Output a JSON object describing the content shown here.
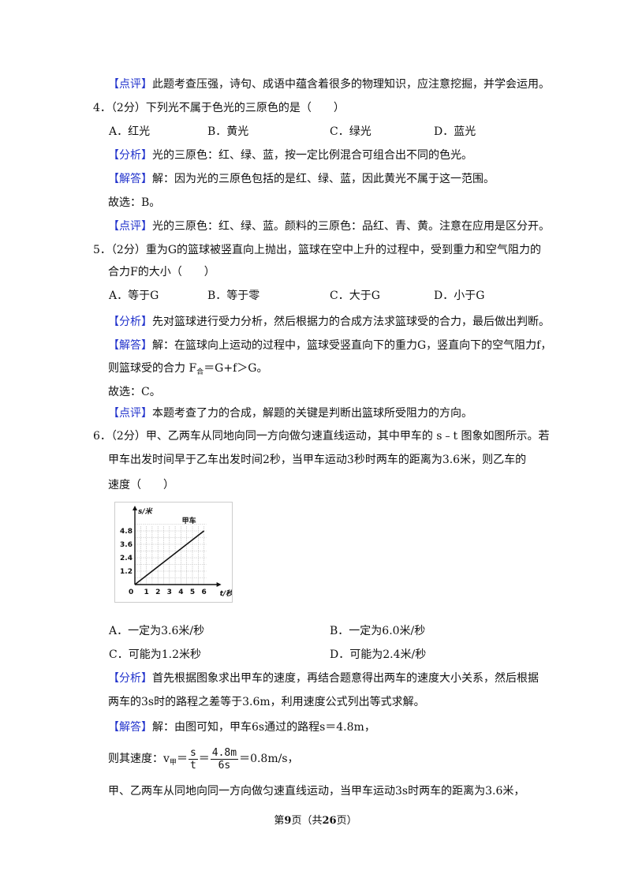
{
  "prev_review": {
    "tag": "【点评】",
    "text": "此题考查压强，诗句、成语中蕴含着很多的物理知识，应注意挖掘，并学会运用。"
  },
  "questions": [
    {
      "number": "4．",
      "score": "（2分）",
      "stem": [
        "下列光不属于色光的三原色的是（　　）"
      ],
      "options": [
        {
          "letter": "A．",
          "text": "红光"
        },
        {
          "letter": "B．",
          "text": "黄光"
        },
        {
          "letter": "C．",
          "text": "绿光"
        },
        {
          "letter": "D．",
          "text": "蓝光"
        }
      ],
      "analysis": {
        "tag": "【分析】",
        "text": [
          "光的三原色：红、绿、蓝，按一定比例混合可组合出不同的色光。"
        ]
      },
      "answer": {
        "tag": "【解答】",
        "text": [
          "解：因为光的三原色包括的是红、绿、蓝，因此黄光不属于这一范围。"
        ]
      },
      "choice": "故选：B。",
      "review": {
        "tag": "【点评】",
        "text": "光的三原色：红、绿、蓝。颜料的三原色：品红、青、黄。注意在应用是区分开。"
      }
    },
    {
      "number": "5．",
      "score": "（2分）",
      "stem": [
        "重为G的篮球被竖直向上抛出，篮球在空中上升的过程中，受到重力和空气阻力的",
        "合力F的大小（　　）"
      ],
      "options": [
        {
          "letter": "A．",
          "text": "等于G"
        },
        {
          "letter": "B．",
          "text": "等于零"
        },
        {
          "letter": "C．",
          "text": "大于G"
        },
        {
          "letter": "D．",
          "text": "小于G"
        }
      ],
      "analysis": {
        "tag": "【分析】",
        "text": [
          "先对篮球进行受力分析，然后根据力的合成方法求篮球受的合力，最后做出判断。"
        ]
      },
      "answer": {
        "tag": "【解答】",
        "text": [
          "解：在篮球向上运动的过程中，篮球受竖直向下的重力G，竖直向下的空气阻力f，"
        ],
        "formula": {
          "pre": "则篮球受的合力 F",
          "sub": "合",
          "post": "＝G+f＞G。"
        }
      },
      "choice": "故选：C。",
      "review": {
        "tag": "【点评】",
        "text": "本题考查了力的合成，解题的关键是判断出篮球所受阻力的方向。"
      }
    },
    {
      "number": "6．",
      "score": "（2分）",
      "stem": [
        "甲、乙两车从同地向同一方向做匀速直线运动，其中甲车的 s﹣t 图象如图所示。若",
        "甲车出发时间早于乙车出发时间2秒，当甲车运动3秒时两车的距离为3.6米，则乙车的",
        "速度（　　）"
      ],
      "figure": {
        "y_label": "s/米",
        "x_label": "t/秒",
        "line_label": "甲车",
        "origin": "0",
        "yticks": [
          "1.2",
          "2.4",
          "3.6",
          "4.8"
        ],
        "xticks": [
          "1",
          "2",
          "3",
          "4",
          "5",
          "6"
        ]
      },
      "options": [
        {
          "letter": "A．",
          "text": "一定为3.6米/秒"
        },
        {
          "letter": "B．",
          "text": "一定为6.0米/秒"
        },
        {
          "letter": "C．",
          "text": "可能为1.2米秒"
        },
        {
          "letter": "D．",
          "text": "可能为2.4米/秒"
        }
      ],
      "analysis": {
        "tag": "【分析】",
        "text": [
          "首先根据图象求出甲车的速度，再结合题意得出两车的速度大小关系，然后根据",
          "两车的3s时的路程之差等于3.6m，利用速度公式列出等式求解。"
        ]
      },
      "answer": {
        "tag": "【解答】",
        "text": [
          "解：由图可知，甲车6s通过的路程s＝4.8m，"
        ],
        "formula": {
          "pre": "则其速度：v",
          "sub": "甲",
          "eq1": "＝",
          "num1": "s",
          "den1": "t",
          "eq2": "＝",
          "num2": "4.8m",
          "den2": "6s",
          "result": "＝0.8m/s，"
        },
        "more": "甲、乙两车从同地向同一方向做匀速直线运动，当甲车运动3s时两车的距离为3.6米，"
      }
    }
  ],
  "footer": {
    "a": "第",
    "page": "9",
    "b": "页（共",
    "total": "26",
    "c": "页）"
  }
}
